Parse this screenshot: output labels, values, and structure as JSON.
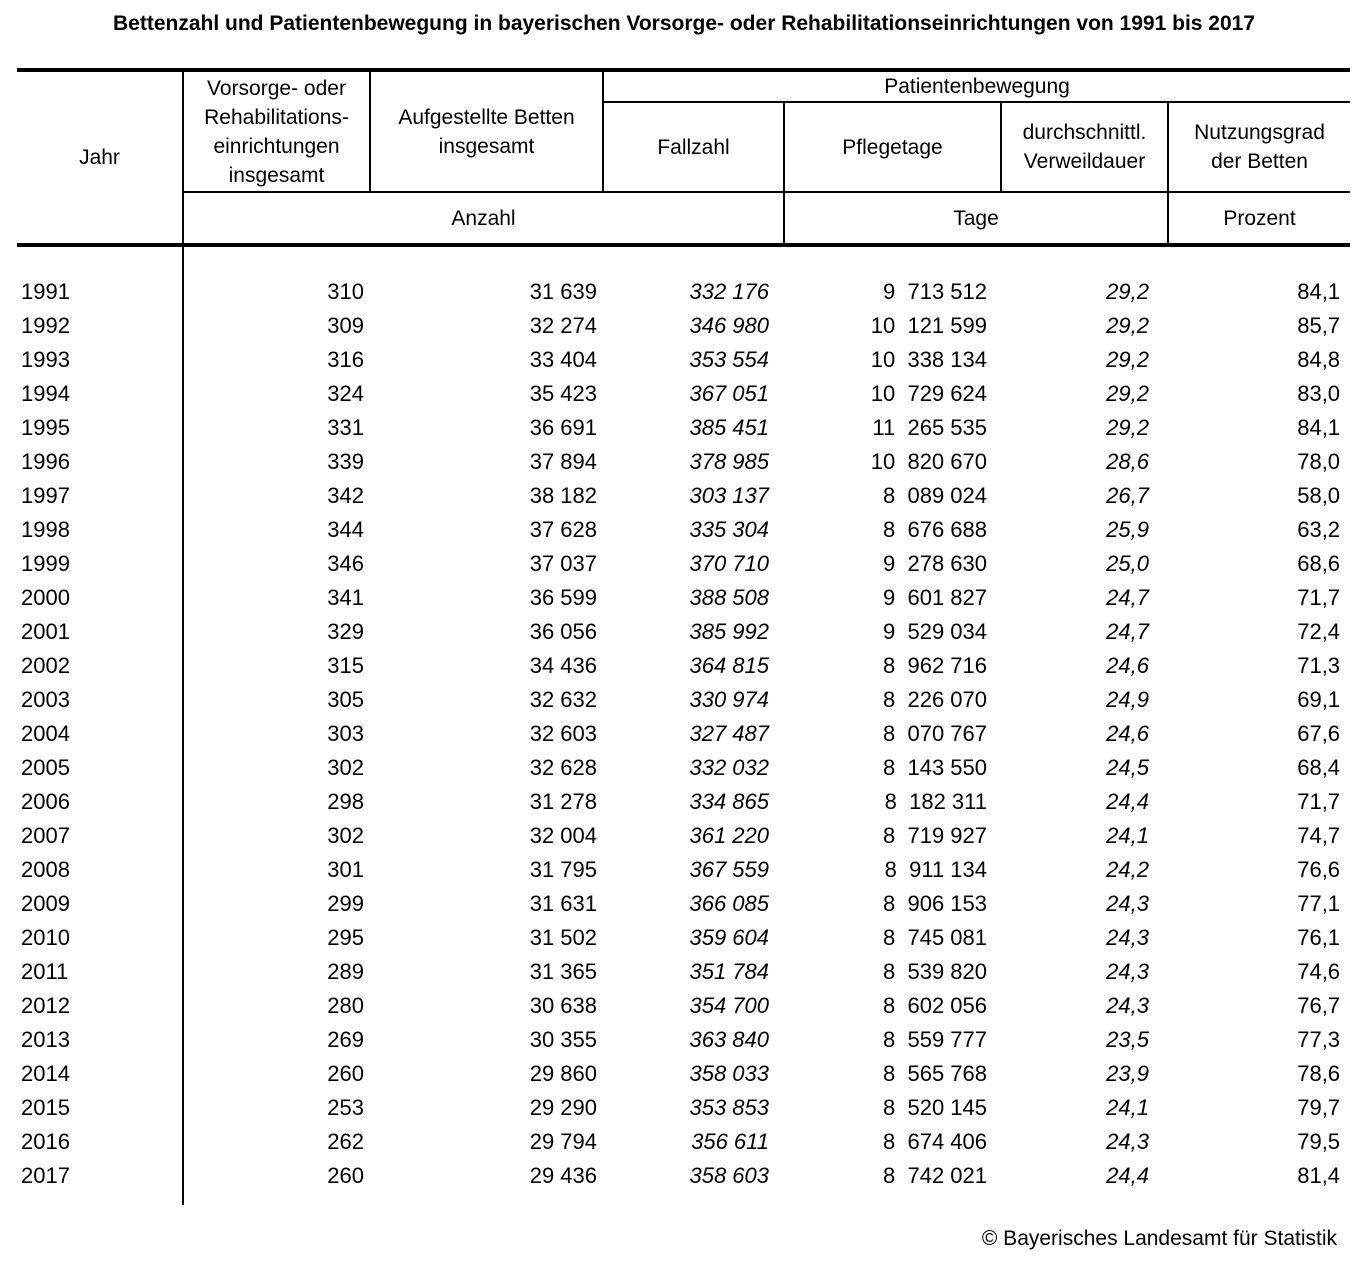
{
  "title": "Bettenzahl und Patientenbewegung in bayerischen Vorsorge- oder Rehabilitationseinrichtungen von 1991 bis 2017",
  "table": {
    "headers": {
      "jahr": "Jahr",
      "einrichtungen": "Vorsorge- oder\nRehabilitations-\neinrichtungen\ninsgesamt",
      "betten": "Aufgestellte Betten\ninsgesamt",
      "patientenbewegung": "Patientenbewegung",
      "fallzahl": "Fallzahl",
      "pflegetage": "Pflegetage",
      "verweildauer": "durchschnittl.\nVerweildauer",
      "nutzungsgrad": "Nutzungsgrad\nder Betten",
      "unit_anzahl": "Anzahl",
      "unit_tage": "Tage",
      "unit_prozent": "Prozent"
    },
    "rows": [
      {
        "jahr": "1991",
        "einrichtungen": "310",
        "betten": "31 639",
        "fallzahl": "332 176",
        "pflegetage": "9  713 512",
        "verweildauer": "29,2",
        "nutzungsgrad": "84,1"
      },
      {
        "jahr": "1992",
        "einrichtungen": "309",
        "betten": "32 274",
        "fallzahl": "346 980",
        "pflegetage": "10  121 599",
        "verweildauer": "29,2",
        "nutzungsgrad": "85,7"
      },
      {
        "jahr": "1993",
        "einrichtungen": "316",
        "betten": "33 404",
        "fallzahl": "353 554",
        "pflegetage": "10  338 134",
        "verweildauer": "29,2",
        "nutzungsgrad": "84,8"
      },
      {
        "jahr": "1994",
        "einrichtungen": "324",
        "betten": "35 423",
        "fallzahl": "367 051",
        "pflegetage": "10  729 624",
        "verweildauer": "29,2",
        "nutzungsgrad": "83,0"
      },
      {
        "jahr": "1995",
        "einrichtungen": "331",
        "betten": "36 691",
        "fallzahl": "385 451",
        "pflegetage": "11  265 535",
        "verweildauer": "29,2",
        "nutzungsgrad": "84,1"
      },
      {
        "jahr": "1996",
        "einrichtungen": "339",
        "betten": "37 894",
        "fallzahl": "378 985",
        "pflegetage": "10  820 670",
        "verweildauer": "28,6",
        "nutzungsgrad": "78,0"
      },
      {
        "jahr": "1997",
        "einrichtungen": "342",
        "betten": "38 182",
        "fallzahl": "303 137",
        "pflegetage": "8  089 024",
        "verweildauer": "26,7",
        "nutzungsgrad": "58,0"
      },
      {
        "jahr": "1998",
        "einrichtungen": "344",
        "betten": "37 628",
        "fallzahl": "335 304",
        "pflegetage": "8  676 688",
        "verweildauer": "25,9",
        "nutzungsgrad": "63,2"
      },
      {
        "jahr": "1999",
        "einrichtungen": "346",
        "betten": "37 037",
        "fallzahl": "370 710",
        "pflegetage": "9  278 630",
        "verweildauer": "25,0",
        "nutzungsgrad": "68,6"
      },
      {
        "jahr": "2000",
        "einrichtungen": "341",
        "betten": "36 599",
        "fallzahl": "388 508",
        "pflegetage": "9  601 827",
        "verweildauer": "24,7",
        "nutzungsgrad": "71,7"
      },
      {
        "jahr": "2001",
        "einrichtungen": "329",
        "betten": "36 056",
        "fallzahl": "385 992",
        "pflegetage": "9  529 034",
        "verweildauer": "24,7",
        "nutzungsgrad": "72,4"
      },
      {
        "jahr": "2002",
        "einrichtungen": "315",
        "betten": "34 436",
        "fallzahl": "364 815",
        "pflegetage": "8  962 716",
        "verweildauer": "24,6",
        "nutzungsgrad": "71,3"
      },
      {
        "jahr": "2003",
        "einrichtungen": "305",
        "betten": "32 632",
        "fallzahl": "330 974",
        "pflegetage": "8  226 070",
        "verweildauer": "24,9",
        "nutzungsgrad": "69,1"
      },
      {
        "jahr": "2004",
        "einrichtungen": "303",
        "betten": "32 603",
        "fallzahl": "327 487",
        "pflegetage": "8  070 767",
        "verweildauer": "24,6",
        "nutzungsgrad": "67,6"
      },
      {
        "jahr": "2005",
        "einrichtungen": "302",
        "betten": "32 628",
        "fallzahl": "332 032",
        "pflegetage": "8  143 550",
        "verweildauer": "24,5",
        "nutzungsgrad": "68,4"
      },
      {
        "jahr": "2006",
        "einrichtungen": "298",
        "betten": "31 278",
        "fallzahl": "334 865",
        "pflegetage": "8  182 311",
        "verweildauer": "24,4",
        "nutzungsgrad": "71,7"
      },
      {
        "jahr": "2007",
        "einrichtungen": "302",
        "betten": "32 004",
        "fallzahl": "361 220",
        "pflegetage": "8  719 927",
        "verweildauer": "24,1",
        "nutzungsgrad": "74,7"
      },
      {
        "jahr": "2008",
        "einrichtungen": "301",
        "betten": "31 795",
        "fallzahl": "367 559",
        "pflegetage": "8  911 134",
        "verweildauer": "24,2",
        "nutzungsgrad": "76,6"
      },
      {
        "jahr": "2009",
        "einrichtungen": "299",
        "betten": "31 631",
        "fallzahl": "366 085",
        "pflegetage": "8  906 153",
        "verweildauer": "24,3",
        "nutzungsgrad": "77,1"
      },
      {
        "jahr": "2010",
        "einrichtungen": "295",
        "betten": "31 502",
        "fallzahl": "359 604",
        "pflegetage": "8  745 081",
        "verweildauer": "24,3",
        "nutzungsgrad": "76,1"
      },
      {
        "jahr": "2011",
        "einrichtungen": "289",
        "betten": "31 365",
        "fallzahl": "351 784",
        "pflegetage": "8  539 820",
        "verweildauer": "24,3",
        "nutzungsgrad": "74,6"
      },
      {
        "jahr": "2012",
        "einrichtungen": "280",
        "betten": "30 638",
        "fallzahl": "354 700",
        "pflegetage": "8  602 056",
        "verweildauer": "24,3",
        "nutzungsgrad": "76,7"
      },
      {
        "jahr": "2013",
        "einrichtungen": "269",
        "betten": "30 355",
        "fallzahl": "363 840",
        "pflegetage": "8  559 777",
        "verweildauer": "23,5",
        "nutzungsgrad": "77,3"
      },
      {
        "jahr": "2014",
        "einrichtungen": "260",
        "betten": "29 860",
        "fallzahl": "358 033",
        "pflegetage": "8  565 768",
        "verweildauer": "23,9",
        "nutzungsgrad": "78,6"
      },
      {
        "jahr": "2015",
        "einrichtungen": "253",
        "betten": "29 290",
        "fallzahl": "353 853",
        "pflegetage": "8  520 145",
        "verweildauer": "24,1",
        "nutzungsgrad": "79,7"
      },
      {
        "jahr": "2016",
        "einrichtungen": "262",
        "betten": "29 794",
        "fallzahl": "356 611",
        "pflegetage": "8  674 406",
        "verweildauer": "24,3",
        "nutzungsgrad": "79,5"
      },
      {
        "jahr": "2017",
        "einrichtungen": "260",
        "betten": "29 436",
        "fallzahl": "358 603",
        "pflegetage": "8  742 021",
        "verweildauer": "24,4",
        "nutzungsgrad": "81,4"
      }
    ]
  },
  "footer": {
    "copyright": "© Bayerisches Landesamt für Statistik"
  }
}
